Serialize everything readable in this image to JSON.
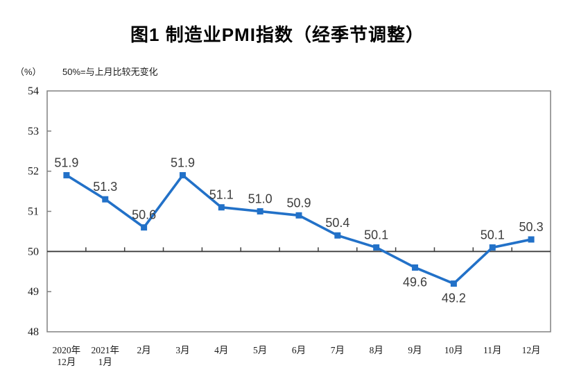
{
  "chart_data": {
    "type": "line",
    "title": "图1 制造业PMI指数（经季节调整）",
    "unit_label": "（%）",
    "reference_note": "50%=与上月比较无变化",
    "categories": [
      [
        "2020年",
        "12月"
      ],
      [
        "2021年",
        "1月"
      ],
      [
        "2月"
      ],
      [
        "3月"
      ],
      [
        "4月"
      ],
      [
        "5月"
      ],
      [
        "6月"
      ],
      [
        "7月"
      ],
      [
        "8月"
      ],
      [
        "9月"
      ],
      [
        "10月"
      ],
      [
        "11月"
      ],
      [
        "12月"
      ]
    ],
    "series": [
      {
        "name": "制造业PMI",
        "values": [
          51.9,
          51.3,
          50.6,
          51.9,
          51.1,
          51.0,
          50.9,
          50.4,
          50.1,
          49.6,
          49.2,
          50.1,
          50.3
        ],
        "label_positions": [
          "above",
          "above",
          "above",
          "above",
          "above",
          "above",
          "above",
          "above",
          "above",
          "below",
          "below",
          "above",
          "above"
        ]
      }
    ],
    "ylim": [
      48,
      54
    ],
    "y_ticks": [
      48,
      49,
      50,
      51,
      52,
      53,
      54
    ],
    "reference_line": 50,
    "grid": false,
    "legend": "none",
    "colors": {
      "line": "#2271c8",
      "marker": "#2271c8",
      "plot_border": "#808080",
      "axis_tick": "#808080",
      "reference_line": "#3f3f3f",
      "data_label": "#3c3c3c",
      "tick_label": "#1a1a1a"
    }
  }
}
